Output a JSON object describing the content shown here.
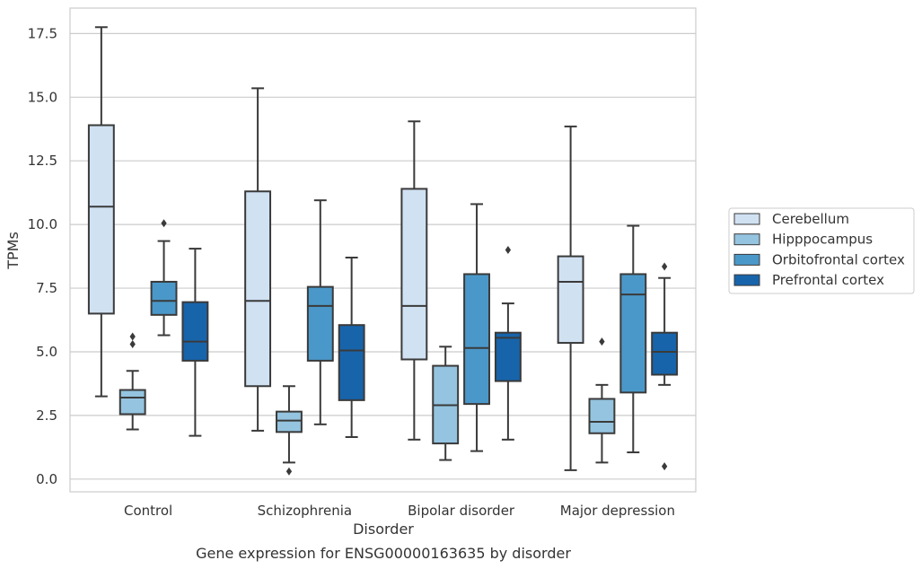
{
  "chart_data": {
    "type": "box",
    "title": "",
    "caption": "Gene expression for ENSG00000163635 by disorder",
    "xlabel": "Disorder",
    "ylabel": "TPMs",
    "ylim": [
      -0.5,
      18.5
    ],
    "yticks": [
      0.0,
      2.5,
      5.0,
      7.5,
      10.0,
      12.5,
      15.0,
      17.5
    ],
    "ytick_labels": [
      "0.0",
      "2.5",
      "5.0",
      "7.5",
      "10.0",
      "12.5",
      "15.0",
      "17.5"
    ],
    "grid": "horizontal",
    "legend_position": "right",
    "categories": [
      "Control",
      "Schizophrenia",
      "Bipolar disorder",
      "Major depression"
    ],
    "series": [
      {
        "name": "Cerebellum",
        "color": "#d0e1f2",
        "boxes": [
          {
            "whisker_low": 3.25,
            "q1": 6.5,
            "median": 10.7,
            "q3": 13.9,
            "whisker_high": 17.75,
            "outliers": []
          },
          {
            "whisker_low": 1.9,
            "q1": 3.65,
            "median": 7.0,
            "q3": 11.3,
            "whisker_high": 15.35,
            "outliers": []
          },
          {
            "whisker_low": 1.55,
            "q1": 4.7,
            "median": 6.8,
            "q3": 11.4,
            "whisker_high": 14.05,
            "outliers": []
          },
          {
            "whisker_low": 0.35,
            "q1": 5.35,
            "median": 7.75,
            "q3": 8.75,
            "whisker_high": 13.85,
            "outliers": []
          }
        ]
      },
      {
        "name": "Hipppocampus",
        "color": "#94c4df",
        "boxes": [
          {
            "whisker_low": 1.95,
            "q1": 2.55,
            "median": 3.2,
            "q3": 3.5,
            "whisker_high": 4.25,
            "outliers": [
              5.6,
              5.3
            ]
          },
          {
            "whisker_low": 0.65,
            "q1": 1.85,
            "median": 2.3,
            "q3": 2.65,
            "whisker_high": 3.65,
            "outliers": [
              0.3
            ]
          },
          {
            "whisker_low": 0.75,
            "q1": 1.4,
            "median": 2.9,
            "q3": 4.45,
            "whisker_high": 5.2,
            "outliers": []
          },
          {
            "whisker_low": 0.65,
            "q1": 1.8,
            "median": 2.25,
            "q3": 3.15,
            "whisker_high": 3.7,
            "outliers": [
              5.4
            ]
          }
        ]
      },
      {
        "name": "Orbitofrontal cortex",
        "color": "#4a98c9",
        "boxes": [
          {
            "whisker_low": 5.65,
            "q1": 6.45,
            "median": 7.0,
            "q3": 7.75,
            "whisker_high": 9.35,
            "outliers": [
              10.05
            ]
          },
          {
            "whisker_low": 2.15,
            "q1": 4.65,
            "median": 6.8,
            "q3": 7.55,
            "whisker_high": 10.95,
            "outliers": []
          },
          {
            "whisker_low": 1.1,
            "q1": 2.95,
            "median": 5.15,
            "q3": 8.05,
            "whisker_high": 10.8,
            "outliers": []
          },
          {
            "whisker_low": 1.05,
            "q1": 3.4,
            "median": 7.25,
            "q3": 8.05,
            "whisker_high": 9.95,
            "outliers": []
          }
        ]
      },
      {
        "name": "Prefrontal cortex",
        "color": "#1764ab",
        "boxes": [
          {
            "whisker_low": 1.7,
            "q1": 4.65,
            "median": 5.4,
            "q3": 6.95,
            "whisker_high": 9.05,
            "outliers": []
          },
          {
            "whisker_low": 1.65,
            "q1": 3.1,
            "median": 5.05,
            "q3": 6.05,
            "whisker_high": 8.7,
            "outliers": []
          },
          {
            "whisker_low": 1.55,
            "q1": 3.85,
            "median": 5.55,
            "q3": 5.75,
            "whisker_high": 6.9,
            "outliers": [
              9.0
            ]
          },
          {
            "whisker_low": 3.7,
            "q1": 4.1,
            "median": 5.0,
            "q3": 5.75,
            "whisker_high": 7.9,
            "outliers": [
              8.35,
              0.5
            ]
          }
        ]
      }
    ]
  }
}
